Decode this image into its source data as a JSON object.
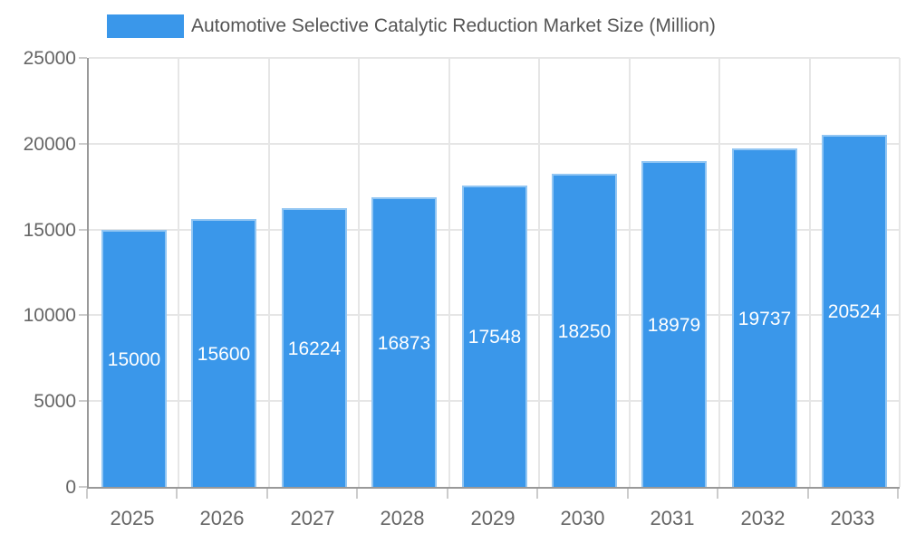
{
  "chart_data": {
    "type": "bar",
    "title": "Automotive Selective Catalytic Reduction Market Size (Million)",
    "categories": [
      "2025",
      "2026",
      "2027",
      "2028",
      "2029",
      "2030",
      "2031",
      "2032",
      "2033"
    ],
    "values": [
      15000,
      15600,
      16224,
      16873,
      17548,
      18250,
      18979,
      19737,
      20524
    ],
    "xlabel": "",
    "ylabel": "",
    "ylim": [
      0,
      25000
    ],
    "yticks": [
      0,
      5000,
      10000,
      15000,
      20000,
      25000
    ],
    "grid": true,
    "legend_position": "top",
    "bar_labels_inside": true,
    "colors": {
      "bar": "#3a97ea",
      "bar_label": "#ffffff",
      "axis_line": "#999999",
      "grid_line": "#e6e6e6",
      "tick_mark": "#cccccc",
      "axis_text": "#666666",
      "title_text": "#555555",
      "background": "#ffffff"
    }
  }
}
